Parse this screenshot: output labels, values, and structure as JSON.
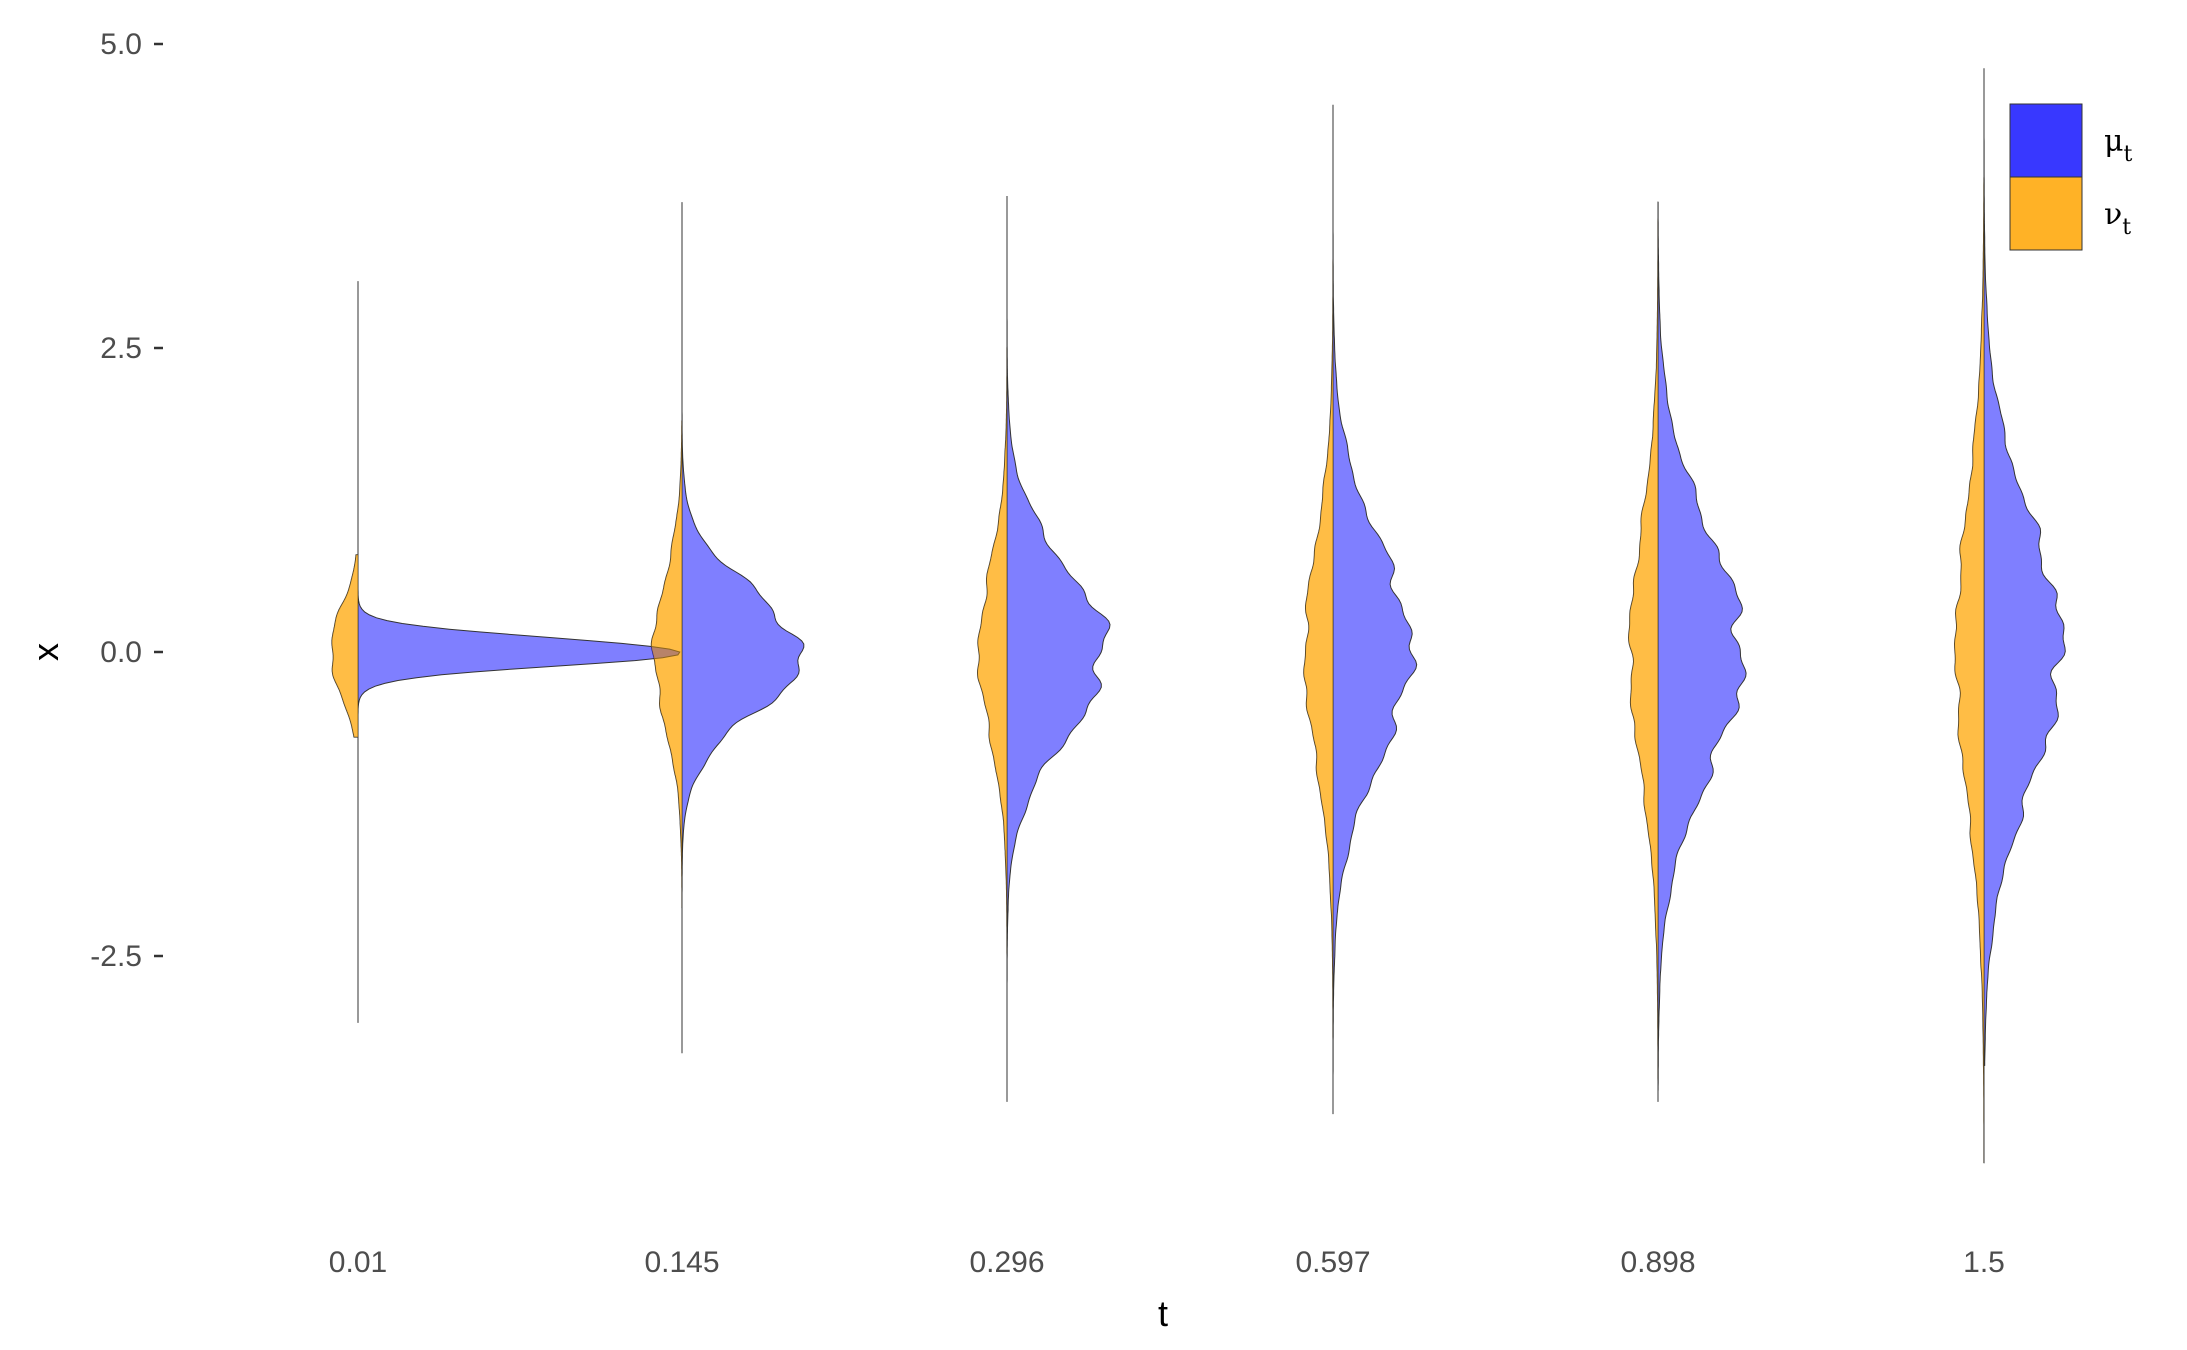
{
  "chart_data": {
    "type": "area",
    "xlabel": "t",
    "ylabel": "x",
    "x_tick_labels": [
      "0.01",
      "0.145",
      "0.296",
      "0.597",
      "0.898",
      "1.5"
    ],
    "y_ticks": [
      5.0,
      2.5,
      0.0,
      -2.5
    ],
    "y_tick_labels": [
      "5.0",
      "2.5",
      "0.0",
      "-2.5"
    ],
    "ylim": [
      -4.5,
      5.0
    ],
    "grid": false,
    "legend_position": "top-right",
    "legend": [
      {
        "base": "μ",
        "sub": "t",
        "color": "#0000ff",
        "side": "right"
      },
      {
        "base": "ν",
        "sub": "t",
        "color": "#ffa500",
        "side": "left"
      }
    ],
    "series": [
      {
        "label_base": "μ",
        "color": "#0000ff",
        "side": "right",
        "distributions": [
          {
            "t": "0.01",
            "mean": 0.0,
            "sd": 0.12,
            "peak": 4.3,
            "min": -3.05,
            "max": 3.05
          },
          {
            "t": "0.145",
            "mean": 0.0,
            "sd": 0.5,
            "peak": 1.7,
            "min": -3.3,
            "max": 3.7
          },
          {
            "t": "0.296",
            "mean": 0.0,
            "sd": 0.7,
            "peak": 1.4,
            "min": -3.7,
            "max": 3.75
          },
          {
            "t": "0.597",
            "mean": 0.0,
            "sd": 0.9,
            "peak": 1.1,
            "min": -3.7,
            "max": 4.5
          },
          {
            "t": "0.898",
            "mean": 0.0,
            "sd": 1.0,
            "peak": 1.2,
            "min": -3.6,
            "max": 3.7
          },
          {
            "t": "1.5",
            "mean": 0.0,
            "sd": 1.1,
            "peak": 1.1,
            "min": -3.4,
            "max": 4.8
          }
        ]
      },
      {
        "label_base": "ν",
        "color": "#ffa500",
        "side": "left",
        "distributions": [
          {
            "t": "0.01",
            "mean": 0.0,
            "sd": 0.35,
            "peak": 0.4,
            "min": -0.7,
            "max": 0.8
          },
          {
            "t": "0.145",
            "mean": 0.0,
            "sd": 0.6,
            "peak": 0.4,
            "min": -2.1,
            "max": 1.9
          },
          {
            "t": "0.296",
            "mean": 0.0,
            "sd": 0.7,
            "peak": 0.4,
            "min": -2.8,
            "max": 2.5
          },
          {
            "t": "0.597",
            "mean": 0.0,
            "sd": 0.9,
            "peak": 0.4,
            "min": -3.8,
            "max": 3.4
          },
          {
            "t": "0.898",
            "mean": 0.0,
            "sd": 1.0,
            "peak": 0.4,
            "min": -3.7,
            "max": 3.6
          },
          {
            "t": "1.5",
            "mean": 0.0,
            "sd": 1.2,
            "peak": 0.4,
            "min": -4.2,
            "max": 3.9
          }
        ]
      },
      {
        "label_base": "μ",
        "color": "#8b4513",
        "side": "right",
        "role": "overlap",
        "distributions": []
      }
    ]
  }
}
